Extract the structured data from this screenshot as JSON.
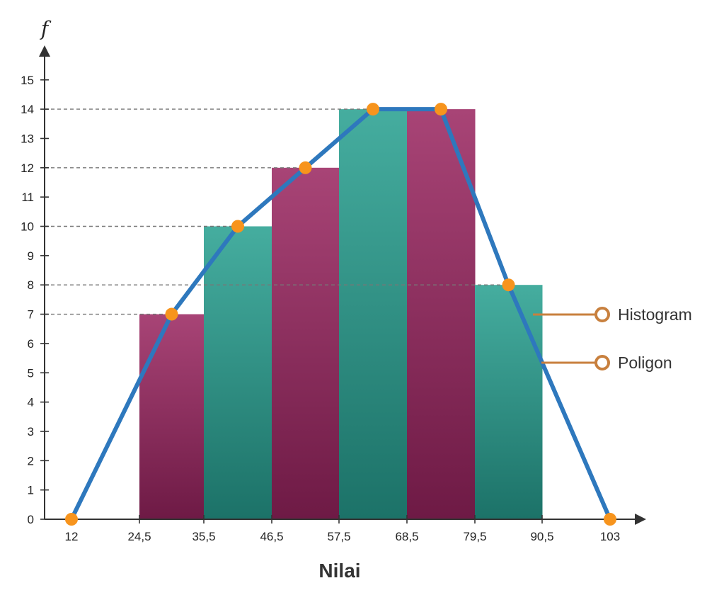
{
  "chart_data": {
    "type": "bar",
    "title": "",
    "xlabel": "Nilai",
    "ylabel": "f",
    "x_ticks": [
      "12",
      "24,5",
      "35,5",
      "46,5",
      "57,5",
      "68,5",
      "79,5",
      "90,5",
      "103"
    ],
    "y_ticks": [
      "0",
      "1",
      "2",
      "3",
      "4",
      "5",
      "6",
      "7",
      "8",
      "9",
      "10",
      "11",
      "12",
      "13",
      "14",
      "15"
    ],
    "ylim": [
      0,
      15
    ],
    "grid": false,
    "reference_lines_y": [
      7,
      10,
      12,
      14,
      8
    ],
    "histogram": {
      "name": "Histogram",
      "bins": [
        {
          "from": "24,5",
          "to": "35,5",
          "value": 7
        },
        {
          "from": "35,5",
          "to": "46,5",
          "value": 10
        },
        {
          "from": "46,5",
          "to": "57,5",
          "value": 12
        },
        {
          "from": "57,5",
          "to": "68,5",
          "value": 14
        },
        {
          "from": "68,5",
          "to": "79,5",
          "value": 14
        },
        {
          "from": "79,5",
          "to": "90,5",
          "value": 8
        }
      ]
    },
    "polygon": {
      "name": "Poligon",
      "points": [
        {
          "x": 12,
          "y": 0
        },
        {
          "x": 30,
          "y": 7
        },
        {
          "x": 41,
          "y": 10
        },
        {
          "x": 52,
          "y": 12
        },
        {
          "x": 63,
          "y": 14
        },
        {
          "x": 74,
          "y": 14
        },
        {
          "x": 85,
          "y": 8
        },
        {
          "x": 103,
          "y": 0
        }
      ]
    },
    "legend": {
      "placement": "right",
      "items": [
        {
          "label": "Histogram"
        },
        {
          "label": "Poligon"
        }
      ]
    },
    "colors": {
      "bar_magenta_top": "#a84476",
      "bar_magenta_bottom": "#6e1a45",
      "bar_teal_top": "#45ad9f",
      "bar_teal_bottom": "#1c7268",
      "polygon_line": "#2e78bd",
      "point": "#f7941d",
      "legend_line": "#c8803e",
      "axis": "#333333",
      "ref_line": "#777777"
    }
  }
}
